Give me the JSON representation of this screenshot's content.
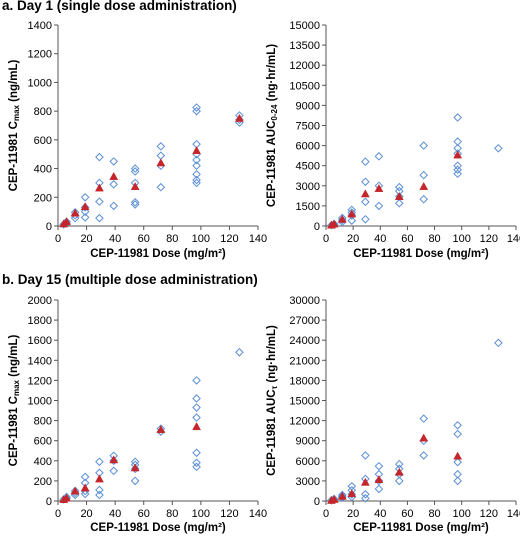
{
  "sections": [
    {
      "title": "a. Day 1 (single dose administration)"
    },
    {
      "title": "b. Day 15 (multiple dose administration)"
    }
  ],
  "colors": {
    "individual_marker": "#5b8fd6",
    "mean_marker": "#c4262b",
    "axis": "#555555",
    "grid": "none"
  },
  "chart_data": [
    {
      "id": "day1-cmax",
      "type": "scatter",
      "xlabel": "CEP-11981 Dose (mg/m²)",
      "ylabel": "CEP-11981 C<sub>max</sub> (ng/mL)",
      "ylabel_main": "CEP-11981 C",
      "ylabel_sub": "max",
      "ylabel_tail": " (ng/mL)",
      "xlim": [
        0,
        140
      ],
      "ylim": [
        0,
        1400
      ],
      "xticks": [
        0,
        20,
        40,
        60,
        80,
        100,
        120,
        140
      ],
      "yticks": [
        0,
        200,
        400,
        600,
        800,
        1000,
        1200,
        1400
      ],
      "grid": false,
      "series": [
        {
          "name": "",
          "marker": "open-diamond",
          "points": [
            [
              4,
              12
            ],
            [
              6,
              20
            ],
            [
              6,
              30
            ],
            [
              12,
              55
            ],
            [
              12,
              75
            ],
            [
              12,
              95
            ],
            [
              19,
              60
            ],
            [
              19,
              100
            ],
            [
              19,
              130
            ],
            [
              19,
              200
            ],
            [
              29,
              55
            ],
            [
              29,
              170
            ],
            [
              29,
              300
            ],
            [
              29,
              480
            ],
            [
              39,
              140
            ],
            [
              39,
              290
            ],
            [
              39,
              450
            ],
            [
              54,
              165
            ],
            [
              54,
              150
            ],
            [
              54,
              300
            ],
            [
              54,
              380
            ],
            [
              54,
              400
            ],
            [
              72,
              270
            ],
            [
              72,
              420
            ],
            [
              72,
              490
            ],
            [
              72,
              555
            ],
            [
              97,
              300
            ],
            [
              97,
              320
            ],
            [
              97,
              360
            ],
            [
              97,
              420
            ],
            [
              97,
              460
            ],
            [
              97,
              500
            ],
            [
              97,
              570
            ],
            [
              97,
              800
            ],
            [
              97,
              825
            ],
            [
              127,
              720
            ],
            [
              127,
              740
            ],
            [
              127,
              770
            ]
          ]
        },
        {
          "name": "",
          "marker": "filled-triangle",
          "points": [
            [
              4,
              15
            ],
            [
              6,
              30
            ],
            [
              12,
              90
            ],
            [
              19,
              135
            ],
            [
              29,
              265
            ],
            [
              39,
              345
            ],
            [
              54,
              275
            ],
            [
              72,
              440
            ],
            [
              97,
              525
            ],
            [
              127,
              750
            ]
          ]
        }
      ]
    },
    {
      "id": "day1-auc",
      "type": "scatter",
      "xlabel": "CEP-11981 Dose (mg/m²)",
      "ylabel_main": "CEP-11981 AUC",
      "ylabel_sub": "0-24",
      "ylabel_tail": " (ng·hr/mL)",
      "xlim": [
        0,
        140
      ],
      "ylim": [
        0,
        15000
      ],
      "xticks": [
        0,
        20,
        40,
        60,
        80,
        100,
        120,
        140
      ],
      "yticks": [
        0,
        1500,
        3000,
        4500,
        6000,
        7500,
        9000,
        10500,
        12000,
        13500,
        15000
      ],
      "grid": false,
      "series": [
        {
          "name": "",
          "marker": "open-diamond",
          "points": [
            [
              4,
              60
            ],
            [
              6,
              100
            ],
            [
              6,
              150
            ],
            [
              12,
              300
            ],
            [
              12,
              450
            ],
            [
              12,
              600
            ],
            [
              19,
              400
            ],
            [
              19,
              800
            ],
            [
              19,
              1000
            ],
            [
              19,
              1200
            ],
            [
              29,
              500
            ],
            [
              29,
              1800
            ],
            [
              29,
              3300
            ],
            [
              29,
              4800
            ],
            [
              39,
              1500
            ],
            [
              39,
              3000
            ],
            [
              39,
              5200
            ],
            [
              54,
              1700
            ],
            [
              54,
              2200
            ],
            [
              54,
              2600
            ],
            [
              54,
              2900
            ],
            [
              72,
              2000
            ],
            [
              72,
              3800
            ],
            [
              72,
              6000
            ],
            [
              97,
              3900
            ],
            [
              97,
              4200
            ],
            [
              97,
              4500
            ],
            [
              97,
              5400
            ],
            [
              97,
              5800
            ],
            [
              97,
              6300
            ],
            [
              97,
              8100
            ],
            [
              127,
              5800
            ]
          ]
        },
        {
          "name": "",
          "marker": "filled-triangle",
          "points": [
            [
              4,
              70
            ],
            [
              6,
              150
            ],
            [
              12,
              500
            ],
            [
              19,
              900
            ],
            [
              29,
              2400
            ],
            [
              39,
              2800
            ],
            [
              54,
              2200
            ],
            [
              72,
              2950
            ],
            [
              97,
              5300
            ]
          ]
        }
      ]
    },
    {
      "id": "day15-cmax",
      "type": "scatter",
      "xlabel": "CEP-11981 Dose (mg/m²)",
      "ylabel_main": "CEP-11981 C",
      "ylabel_sub": "max",
      "ylabel_tail": " (ng/mL)",
      "xlim": [
        0,
        140
      ],
      "ylim": [
        0,
        2000
      ],
      "xticks": [
        0,
        20,
        40,
        60,
        80,
        100,
        120,
        140
      ],
      "yticks": [
        0,
        200,
        400,
        600,
        800,
        1000,
        1200,
        1400,
        1600,
        1800,
        2000
      ],
      "grid": false,
      "series": [
        {
          "name": "",
          "marker": "open-diamond",
          "points": [
            [
              4,
              15
            ],
            [
              6,
              25
            ],
            [
              6,
              40
            ],
            [
              12,
              60
            ],
            [
              12,
              80
            ],
            [
              12,
              100
            ],
            [
              19,
              70
            ],
            [
              19,
              100
            ],
            [
              19,
              180
            ],
            [
              19,
              240
            ],
            [
              29,
              60
            ],
            [
              29,
              110
            ],
            [
              29,
              280
            ],
            [
              29,
              390
            ],
            [
              39,
              300
            ],
            [
              39,
              400
            ],
            [
              39,
              450
            ],
            [
              54,
              200
            ],
            [
              54,
              320
            ],
            [
              54,
              360
            ],
            [
              54,
              390
            ],
            [
              72,
              690
            ],
            [
              72,
              720
            ],
            [
              97,
              340
            ],
            [
              97,
              380
            ],
            [
              97,
              480
            ],
            [
              97,
              830
            ],
            [
              97,
              930
            ],
            [
              97,
              1020
            ],
            [
              97,
              1200
            ],
            [
              127,
              1480
            ]
          ]
        },
        {
          "name": "",
          "marker": "filled-triangle",
          "points": [
            [
              4,
              15
            ],
            [
              6,
              30
            ],
            [
              12,
              100
            ],
            [
              19,
              130
            ],
            [
              29,
              220
            ],
            [
              39,
              410
            ],
            [
              54,
              330
            ],
            [
              72,
              710
            ],
            [
              97,
              740
            ]
          ]
        }
      ]
    },
    {
      "id": "day15-auc",
      "type": "scatter",
      "xlabel": "CEP-11981 Dose (mg/m²)",
      "ylabel_main": "CEP-11981 AUC",
      "ylabel_sub": "τ",
      "ylabel_tail": " (ng·hr/mL)",
      "xlim": [
        0,
        140
      ],
      "ylim": [
        0,
        30000
      ],
      "xticks": [
        0,
        20,
        40,
        60,
        80,
        100,
        120,
        140
      ],
      "yticks": [
        0,
        3000,
        6000,
        9000,
        12000,
        15000,
        18000,
        21000,
        24000,
        27000,
        30000
      ],
      "grid": false,
      "series": [
        {
          "name": "",
          "marker": "open-diamond",
          "points": [
            [
              4,
              100
            ],
            [
              6,
              200
            ],
            [
              6,
              300
            ],
            [
              12,
              500
            ],
            [
              12,
              700
            ],
            [
              12,
              900
            ],
            [
              19,
              600
            ],
            [
              19,
              1000
            ],
            [
              19,
              1600
            ],
            [
              19,
              2200
            ],
            [
              29,
              400
            ],
            [
              29,
              1000
            ],
            [
              29,
              3300
            ],
            [
              29,
              6800
            ],
            [
              39,
              1800
            ],
            [
              39,
              3000
            ],
            [
              39,
              4000
            ],
            [
              39,
              5200
            ],
            [
              54,
              3000
            ],
            [
              54,
              4000
            ],
            [
              54,
              4800
            ],
            [
              54,
              5500
            ],
            [
              72,
              6800
            ],
            [
              72,
              9000
            ],
            [
              72,
              12300
            ],
            [
              97,
              3000
            ],
            [
              97,
              4000
            ],
            [
              97,
              5800
            ],
            [
              97,
              10000
            ],
            [
              97,
              11300
            ],
            [
              127,
              23600
            ]
          ]
        },
        {
          "name": "",
          "marker": "filled-triangle",
          "points": [
            [
              4,
              100
            ],
            [
              6,
              250
            ],
            [
              12,
              700
            ],
            [
              19,
              1100
            ],
            [
              29,
              2800
            ],
            [
              39,
              3200
            ],
            [
              54,
              4300
            ],
            [
              72,
              9400
            ],
            [
              97,
              6700
            ]
          ]
        }
      ]
    }
  ]
}
